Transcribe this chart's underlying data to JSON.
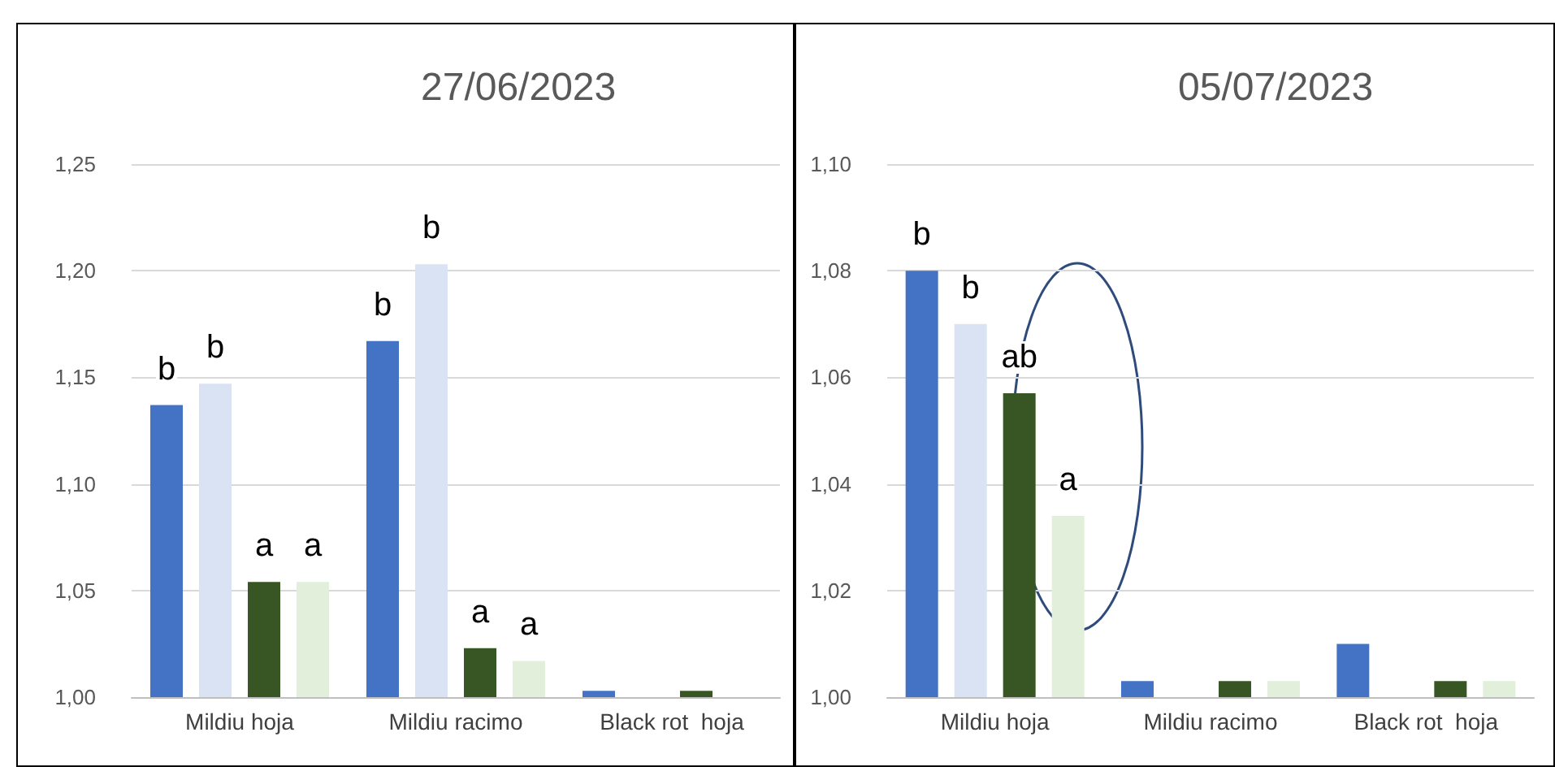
{
  "chart_data": [
    {
      "type": "bar",
      "title": "27/06/2023",
      "categories": [
        "Mildiu hoja",
        "Mildiu racimo",
        "Black rot  hoja"
      ],
      "series": [
        {
          "color": "#4472c4",
          "values": [
            1.137,
            1.167,
            1.003
          ],
          "value_labels": [
            "b",
            "b",
            null
          ]
        },
        {
          "color": "#dae3f3",
          "values": [
            1.147,
            1.203,
            null
          ],
          "value_labels": [
            "b",
            "b",
            null
          ]
        },
        {
          "color": "#375623",
          "values": [
            1.054,
            1.023,
            1.003
          ],
          "value_labels": [
            "a",
            "a",
            null
          ]
        },
        {
          "color": "#e2efda",
          "values": [
            1.054,
            1.017,
            null
          ],
          "value_labels": [
            "a",
            "a",
            null
          ]
        }
      ],
      "ylim": [
        1,
        1.25
      ],
      "yticks": [
        {
          "value": 1,
          "label": "1,00"
        },
        {
          "value": 1.05,
          "label": "1,05"
        },
        {
          "value": 1.1,
          "label": "1,10"
        },
        {
          "value": 1.15,
          "label": "1,15"
        },
        {
          "value": 1.2,
          "label": "1,20"
        },
        {
          "value": 1.25,
          "label": "1,25"
        }
      ],
      "grid": "y"
    },
    {
      "type": "bar",
      "title": "05/07/2023",
      "categories": [
        "Mildiu hoja",
        "Mildiu racimo",
        "Black rot  hoja"
      ],
      "series": [
        {
          "color": "#4472c4",
          "values": [
            1.08,
            1.003,
            1.01
          ],
          "value_labels": [
            "b",
            null,
            null
          ]
        },
        {
          "color": "#dae3f3",
          "values": [
            1.07,
            null,
            null
          ],
          "value_labels": [
            "b",
            null,
            null
          ]
        },
        {
          "color": "#375623",
          "values": [
            1.057,
            1.003,
            1.003
          ],
          "value_labels": [
            "ab",
            null,
            null
          ]
        },
        {
          "color": "#e2efda",
          "values": [
            1.034,
            1.003,
            1.003
          ],
          "value_labels": [
            "a",
            null,
            null
          ]
        }
      ],
      "ylim": [
        1,
        1.1
      ],
      "yticks": [
        {
          "value": 1,
          "label": "1,00"
        },
        {
          "value": 1.02,
          "label": "1,02"
        },
        {
          "value": 1.04,
          "label": "1,04"
        },
        {
          "value": 1.06,
          "label": "1,06"
        },
        {
          "value": 1.08,
          "label": "1,08"
        },
        {
          "value": 1.1,
          "label": "1,10"
        }
      ],
      "grid": "y"
    }
  ]
}
